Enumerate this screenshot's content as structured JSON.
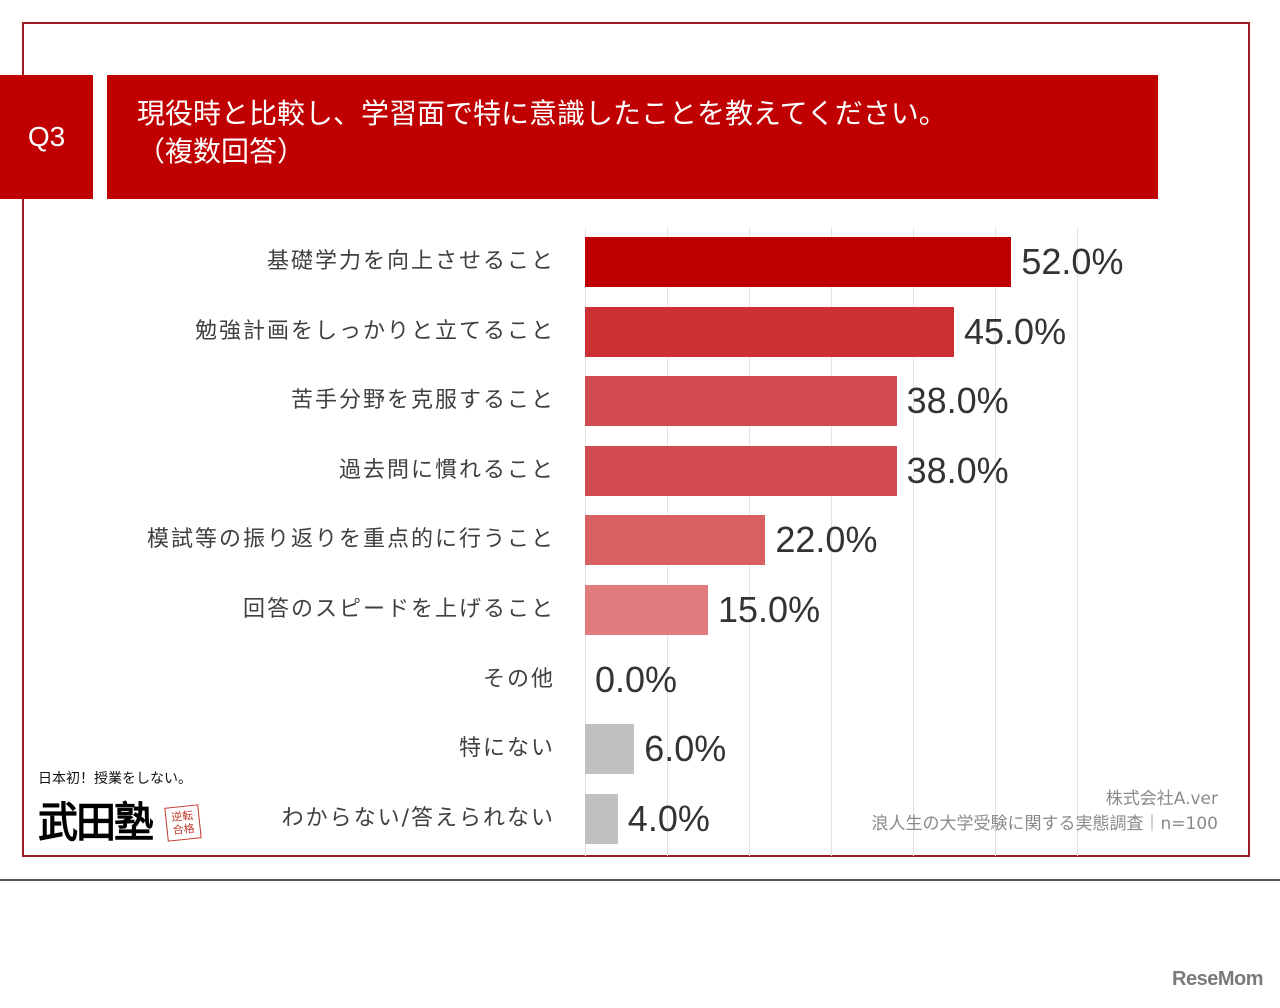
{
  "header": {
    "question_number": "Q3",
    "title_line1": "現役時と比較し、学習面で特に意識したことを教えてください。",
    "title_line2": "（複数回答）"
  },
  "chart_data": {
    "type": "bar",
    "orientation": "horizontal",
    "title": "現役時と比較し、学習面で特に意識したことを教えてください。（複数回答）",
    "xlabel": "",
    "ylabel": "",
    "unit": "%",
    "xlim": [
      0,
      60
    ],
    "grid": true,
    "grid_step": 10,
    "categories": [
      "基礎学力を向上させること",
      "勉強計画をしっかりと立てること",
      "苦手分野を克服すること",
      "過去問に慣れること",
      "模試等の振り返りを重点的に行うこと",
      "回答のスピードを上げること",
      "その他",
      "特にない",
      "わからない/答えられない"
    ],
    "values": [
      52.0,
      45.0,
      38.0,
      38.0,
      22.0,
      15.0,
      0.0,
      6.0,
      4.0
    ],
    "value_labels": [
      "52.0%",
      "45.0%",
      "38.0%",
      "38.0%",
      "22.0%",
      "15.0%",
      "0.0%",
      "6.0%",
      "4.0%"
    ],
    "colors": [
      "#c00000",
      "#cc3033",
      "#d24b4e",
      "#d24b4e",
      "#d96062",
      "#e07c7e",
      "#c0c0c0",
      "#c0c0c0",
      "#c0c0c0"
    ]
  },
  "logo": {
    "tagline": "日本初！授業をしない。",
    "name": "武田塾",
    "stamp": "逆転合格"
  },
  "source": {
    "company": "株式会社A.ver",
    "survey": "浪人生の大学受験に関する実態調査｜n=100"
  },
  "watermark": "ReseMom"
}
